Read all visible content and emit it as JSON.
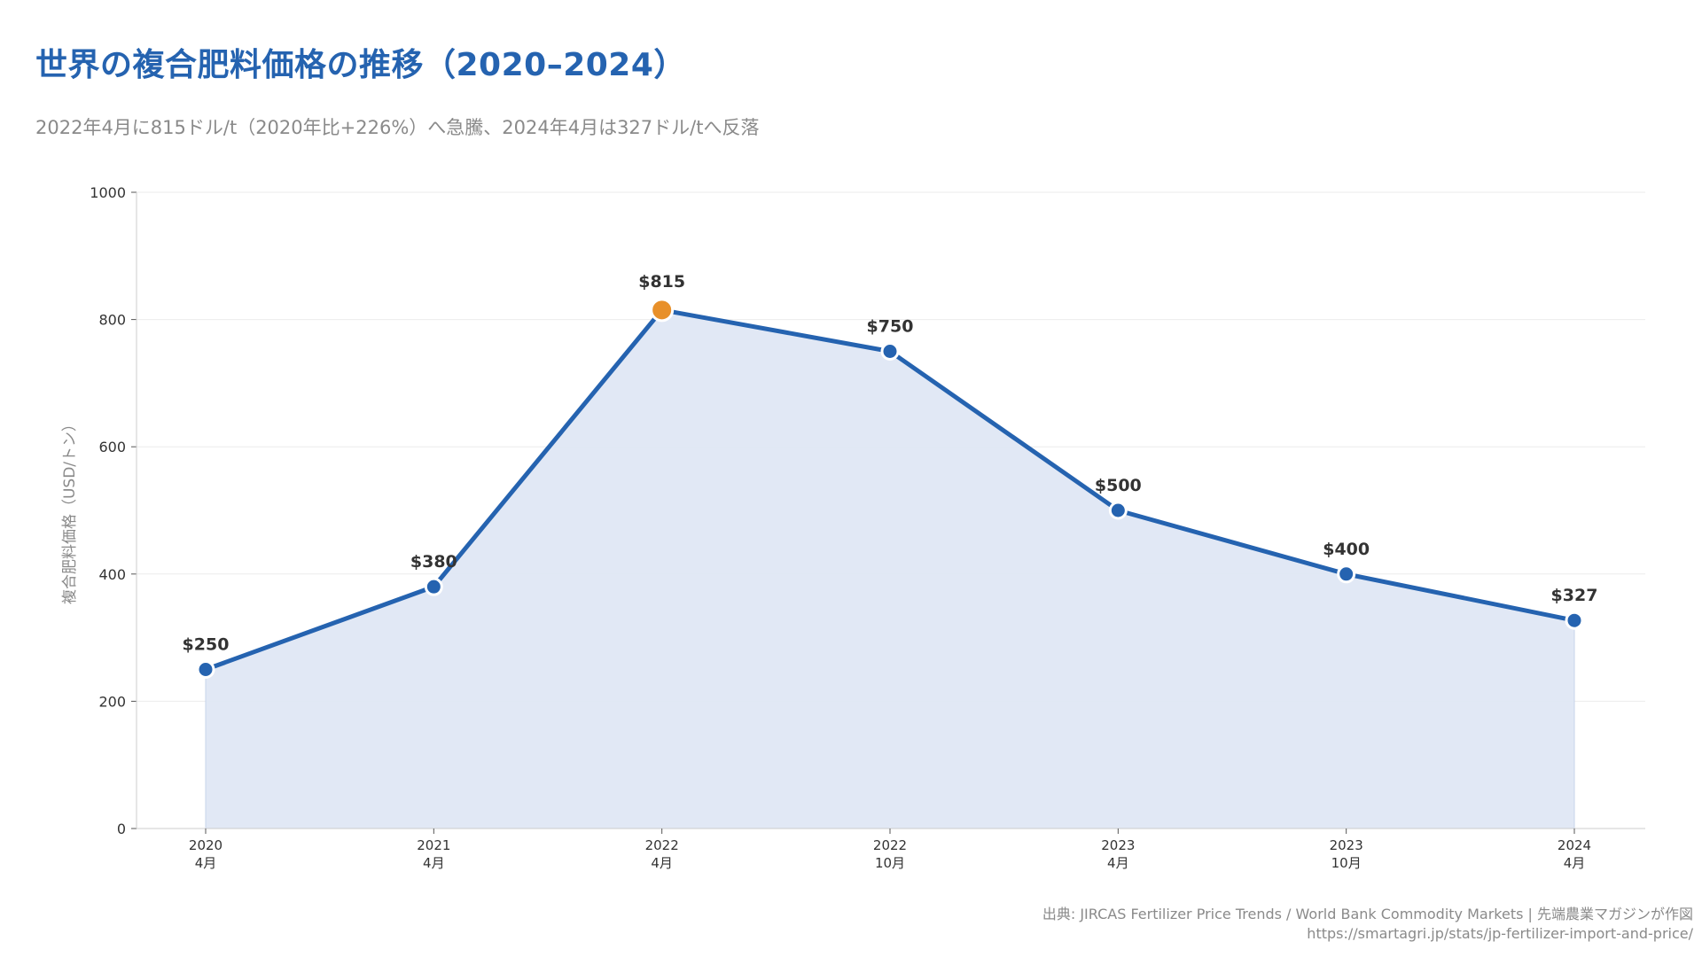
{
  "title": "世界の複合肥料価格の推移（2020–2024）",
  "subtitle": "2022年4月に815ドル/t（2020年比+226%）へ急騰、2024年4月は327ドル/tへ反落",
  "footer": {
    "source": "出典: JIRCAS Fertilizer Price Trends / World Bank Commodity Markets | 先端農業マガジンが作図",
    "url": "https://smartagri.jp/stats/jp-fertilizer-import-and-price/"
  },
  "colors": {
    "title": "#2563b0",
    "line": "#2563b0",
    "area": "#dfe7f4",
    "highlight": "#e8902a",
    "grid": "#ebebeb",
    "axis_text": "#333333",
    "muted_text": "#8a8a8a"
  },
  "chart_data": {
    "type": "area",
    "categories": [
      [
        "2020",
        "4月"
      ],
      [
        "2021",
        "4月"
      ],
      [
        "2022",
        "4月"
      ],
      [
        "2022",
        "10月"
      ],
      [
        "2023",
        "4月"
      ],
      [
        "2023",
        "10月"
      ],
      [
        "2024",
        "4月"
      ]
    ],
    "series": [
      {
        "values": [
          250,
          380,
          815,
          750,
          500,
          400,
          327
        ]
      }
    ],
    "data_labels": [
      "$250",
      "$380",
      "$815",
      "$750",
      "$500",
      "$400",
      "$327"
    ],
    "highlight_index": 2,
    "xlabel": "",
    "ylabel": "複合肥料価格（USD/トン）",
    "ylim": [
      0,
      1000
    ],
    "yticks": [
      0,
      200,
      400,
      600,
      800,
      1000
    ],
    "grid": true
  }
}
